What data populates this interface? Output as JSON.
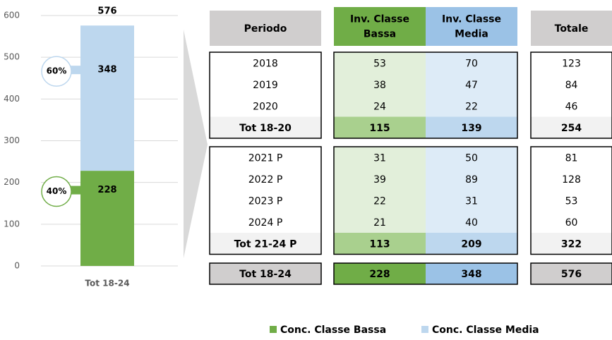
{
  "chart_data": {
    "type": "stacked-bar",
    "categories": [
      "Tot 18-24"
    ],
    "series": [
      {
        "name": "Conc. Classe Bassa",
        "color": "#70ad47",
        "values": [
          228
        ],
        "share_label": "40%"
      },
      {
        "name": "Conc. Classe Media",
        "color": "#bdd7ee",
        "values": [
          348
        ],
        "share_label": "60%"
      }
    ],
    "totals": [
      576
    ],
    "ylim": [
      0,
      600
    ],
    "yticks": [
      0,
      100,
      200,
      300,
      400,
      500,
      600
    ],
    "grid": true,
    "legend": "bottom"
  },
  "table": {
    "header": [
      "Periodo",
      "Inv. Classe Bassa",
      "Inv. Classe Media",
      "Totale"
    ],
    "sections": [
      {
        "rows": [
          [
            "2018",
            53,
            70,
            123
          ],
          [
            "2019",
            38,
            47,
            84
          ],
          [
            "2020",
            24,
            22,
            46
          ]
        ],
        "subtotal": [
          "Tot 18-20",
          115,
          139,
          254
        ]
      },
      {
        "rows": [
          [
            "2021 P",
            31,
            50,
            81
          ],
          [
            "2022 P",
            39,
            89,
            128
          ],
          [
            "2023 P",
            22,
            31,
            53
          ],
          [
            "2024 P",
            21,
            40,
            60
          ]
        ],
        "subtotal": [
          "Tot 21-24 P",
          113,
          209,
          322
        ]
      }
    ],
    "total": [
      "Tot 18-24",
      228,
      348,
      576
    ]
  }
}
